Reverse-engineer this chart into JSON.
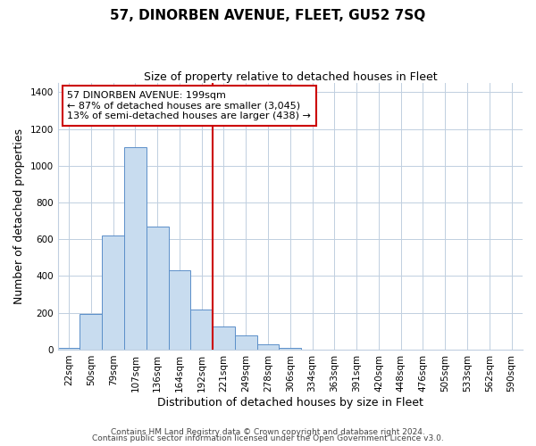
{
  "title": "57, DINORBEN AVENUE, FLEET, GU52 7SQ",
  "subtitle": "Size of property relative to detached houses in Fleet",
  "xlabel": "Distribution of detached houses by size in Fleet",
  "ylabel": "Number of detached properties",
  "bar_labels": [
    "22sqm",
    "50sqm",
    "79sqm",
    "107sqm",
    "136sqm",
    "164sqm",
    "192sqm",
    "221sqm",
    "249sqm",
    "278sqm",
    "306sqm",
    "334sqm",
    "363sqm",
    "391sqm",
    "420sqm",
    "448sqm",
    "476sqm",
    "505sqm",
    "533sqm",
    "562sqm",
    "590sqm"
  ],
  "bar_values": [
    10,
    195,
    620,
    1100,
    670,
    430,
    220,
    125,
    75,
    30,
    10,
    2,
    2,
    1,
    0,
    0,
    0,
    0,
    0,
    0,
    0
  ],
  "bar_color": "#c8dcef",
  "bar_edge_color": "#5b8fc9",
  "vline_x": 6.5,
  "vline_color": "#cc0000",
  "annotation_text": "57 DINORBEN AVENUE: 199sqm\n← 87% of detached houses are smaller (3,045)\n13% of semi-detached houses are larger (438) →",
  "annotation_box_color": "#ffffff",
  "annotation_box_edge": "#cc0000",
  "ylim": [
    0,
    1450
  ],
  "yticks": [
    0,
    200,
    400,
    600,
    800,
    1000,
    1200,
    1400
  ],
  "footer1": "Contains HM Land Registry data © Crown copyright and database right 2024.",
  "footer2": "Contains public sector information licensed under the Open Government Licence v3.0.",
  "background_color": "#ffffff",
  "grid_color": "#c0cfe0",
  "title_fontsize": 11,
  "subtitle_fontsize": 9,
  "axis_label_fontsize": 9,
  "tick_fontsize": 7.5,
  "annotation_fontsize": 8,
  "footer_fontsize": 6.5
}
